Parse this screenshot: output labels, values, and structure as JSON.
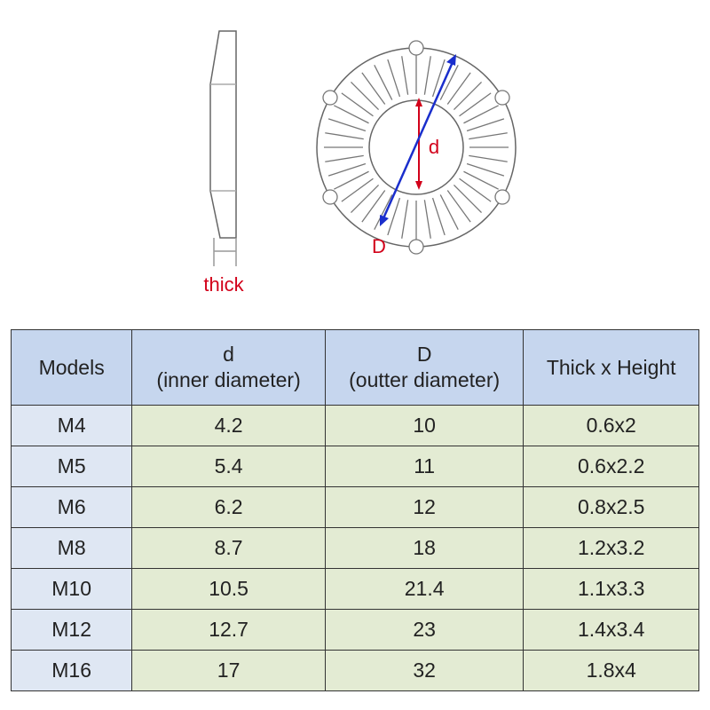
{
  "diagram": {
    "thick_label": "thick",
    "inner_label": "d",
    "outer_label": "D"
  },
  "table": {
    "header": [
      {
        "line1": "Models"
      },
      {
        "line1": "d",
        "line2": "(inner diameter)"
      },
      {
        "line1": "D",
        "line2": "(outter diameter)"
      },
      {
        "line1": "Thick x Height"
      }
    ],
    "rows": [
      [
        "M4",
        "4.2",
        "10",
        "0.6x2"
      ],
      [
        "M5",
        "5.4",
        "11",
        "0.6x2.2"
      ],
      [
        "M6",
        "6.2",
        "12",
        "0.8x2.5"
      ],
      [
        "M8",
        "8.7",
        "18",
        "1.2x3.2"
      ],
      [
        "M10",
        "10.5",
        "21.4",
        "1.1x3.3"
      ],
      [
        "M12",
        "12.7",
        "23",
        "1.4x3.4"
      ],
      [
        "M16",
        "17",
        "32",
        "1.8x4"
      ]
    ]
  }
}
